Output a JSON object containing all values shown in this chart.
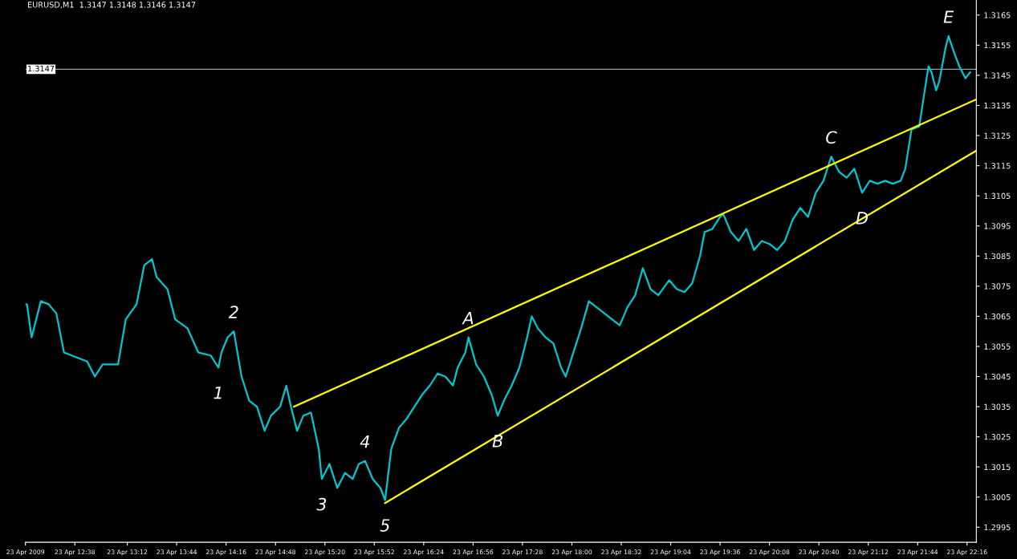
{
  "chart_data": {
    "type": "line",
    "title": "EURUSD,M1  1.3147 1.3148 1.3146 1.3147",
    "xlim": [
      "2009-04-23T12:06",
      "2009-04-23T22:22"
    ],
    "ylim": [
      1.299,
      1.317
    ],
    "xticks": [
      {
        "value": "2009-04-23T12:06",
        "label": "23 Apr 2009"
      },
      {
        "value": "2009-04-23T12:38",
        "label": "23 Apr 12:38"
      },
      {
        "value": "2009-04-23T13:12",
        "label": "23 Apr 13:12"
      },
      {
        "value": "2009-04-23T13:44",
        "label": "23 Apr 13:44"
      },
      {
        "value": "2009-04-23T14:16",
        "label": "23 Apr 14:16"
      },
      {
        "value": "2009-04-23T14:48",
        "label": "23 Apr 14:48"
      },
      {
        "value": "2009-04-23T15:20",
        "label": "23 Apr 15:20"
      },
      {
        "value": "2009-04-23T15:52",
        "label": "23 Apr 15:52"
      },
      {
        "value": "2009-04-23T16:24",
        "label": "23 Apr 16:24"
      },
      {
        "value": "2009-04-23T16:56",
        "label": "23 Apr 16:56"
      },
      {
        "value": "2009-04-23T17:28",
        "label": "23 Apr 17:28"
      },
      {
        "value": "2009-04-23T18:00",
        "label": "23 Apr 18:00"
      },
      {
        "value": "2009-04-23T18:32",
        "label": "23 Apr 18:32"
      },
      {
        "value": "2009-04-23T19:04",
        "label": "23 Apr 19:04"
      },
      {
        "value": "2009-04-23T19:36",
        "label": "23 Apr 19:36"
      },
      {
        "value": "2009-04-23T20:08",
        "label": "23 Apr 20:08"
      },
      {
        "value": "2009-04-23T20:40",
        "label": "23 Apr 20:40"
      },
      {
        "value": "2009-04-23T21:12",
        "label": "23 Apr 21:12"
      },
      {
        "value": "2009-04-23T21:44",
        "label": "23 Apr 21:44"
      },
      {
        "value": "2009-04-23T22:16",
        "label": "23 Apr 22:16"
      }
    ],
    "yticks": [
      1.2995,
      1.3005,
      1.3015,
      1.3025,
      1.3035,
      1.3045,
      1.3055,
      1.3065,
      1.3075,
      1.3085,
      1.3095,
      1.3105,
      1.3115,
      1.3125,
      1.3135,
      1.3145,
      1.3155,
      1.3165
    ],
    "grid": false,
    "marker": "none",
    "line_style": "solid",
    "series": [
      {
        "color": "#00c8d2",
        "x": [
          "2009-04-23T12:06",
          "2009-04-23T12:07",
          "2009-04-23T12:10",
          "2009-04-23T12:16",
          "2009-04-23T12:21",
          "2009-04-23T12:26",
          "2009-04-23T12:31",
          "2009-04-23T12:36",
          "2009-04-23T12:46",
          "2009-04-23T12:51",
          "2009-04-23T12:56",
          "2009-04-23T13:06",
          "2009-04-23T13:11",
          "2009-04-23T13:18",
          "2009-04-23T13:23",
          "2009-04-23T13:28",
          "2009-04-23T13:31",
          "2009-04-23T13:38",
          "2009-04-23T13:43",
          "2009-04-23T13:51",
          "2009-04-23T13:58",
          "2009-04-23T14:06",
          "2009-04-23T14:11",
          "2009-04-23T14:13",
          "2009-04-23T14:17",
          "2009-04-23T14:21",
          "2009-04-23T14:26",
          "2009-04-23T14:31",
          "2009-04-23T14:36",
          "2009-04-23T14:41",
          "2009-04-23T14:45",
          "2009-04-23T14:51",
          "2009-04-23T14:55",
          "2009-04-23T14:58",
          "2009-04-23T15:02",
          "2009-04-23T15:06",
          "2009-04-23T15:11",
          "2009-04-23T15:16",
          "2009-04-23T15:18",
          "2009-04-23T15:23",
          "2009-04-23T15:28",
          "2009-04-23T15:33",
          "2009-04-23T15:38",
          "2009-04-23T15:42",
          "2009-04-23T15:46",
          "2009-04-23T15:51",
          "2009-04-23T15:56",
          "2009-04-23T15:59",
          "2009-04-23T16:03",
          "2009-04-23T16:08",
          "2009-04-23T16:13",
          "2009-04-23T16:18",
          "2009-04-23T16:23",
          "2009-04-23T16:28",
          "2009-04-23T16:33",
          "2009-04-23T16:38",
          "2009-04-23T16:43",
          "2009-04-23T16:46",
          "2009-04-23T16:51",
          "2009-04-23T16:53",
          "2009-04-23T16:58",
          "2009-04-23T17:03",
          "2009-04-23T17:08",
          "2009-04-23T17:12",
          "2009-04-23T17:16",
          "2009-04-23T17:21",
          "2009-04-23T17:26",
          "2009-04-23T17:31",
          "2009-04-23T17:34",
          "2009-04-23T17:38",
          "2009-04-23T17:43",
          "2009-04-23T17:48",
          "2009-04-23T17:53",
          "2009-04-23T17:56",
          "2009-04-23T18:01",
          "2009-04-23T18:06",
          "2009-04-23T18:11",
          "2009-04-23T18:16",
          "2009-04-23T18:21",
          "2009-04-23T18:26",
          "2009-04-23T18:31",
          "2009-04-23T18:36",
          "2009-04-23T18:41",
          "2009-04-23T18:46",
          "2009-04-23T18:51",
          "2009-04-23T18:56",
          "2009-04-23T19:03",
          "2009-04-23T19:08",
          "2009-04-23T19:13",
          "2009-04-23T19:18",
          "2009-04-23T19:23",
          "2009-04-23T19:26",
          "2009-04-23T19:31",
          "2009-04-23T19:36",
          "2009-04-23T19:38",
          "2009-04-23T19:43",
          "2009-04-23T19:48",
          "2009-04-23T19:53",
          "2009-04-23T19:58",
          "2009-04-23T20:03",
          "2009-04-23T20:08",
          "2009-04-23T20:13",
          "2009-04-23T20:18",
          "2009-04-23T20:23",
          "2009-04-23T20:28",
          "2009-04-23T20:33",
          "2009-04-23T20:38",
          "2009-04-23T20:43",
          "2009-04-23T20:48",
          "2009-04-23T20:53",
          "2009-04-23T20:58",
          "2009-04-23T21:03",
          "2009-04-23T21:08",
          "2009-04-23T21:13",
          "2009-04-23T21:18",
          "2009-04-23T21:23",
          "2009-04-23T21:28",
          "2009-04-23T21:33",
          "2009-04-23T21:36",
          "2009-04-23T21:40",
          "2009-04-23T21:45",
          "2009-04-23T21:48",
          "2009-04-23T21:51",
          "2009-04-23T21:53",
          "2009-04-23T21:56",
          "2009-04-23T21:58",
          "2009-04-23T22:02",
          "2009-04-23T22:04",
          "2009-04-23T22:08",
          "2009-04-23T22:11",
          "2009-04-23T22:15",
          "2009-04-23T22:18"
        ],
        "values": [
          1.3069,
          1.3069,
          1.3058,
          1.307,
          1.3069,
          1.3066,
          1.3053,
          1.3052,
          1.305,
          1.3045,
          1.3049,
          1.3049,
          1.3064,
          1.3069,
          1.3082,
          1.3084,
          1.3078,
          1.3074,
          1.3064,
          1.3061,
          1.3053,
          1.3052,
          1.3048,
          1.3053,
          1.3058,
          1.306,
          1.3045,
          1.3037,
          1.3035,
          1.3027,
          1.3032,
          1.3035,
          1.3042,
          1.3035,
          1.3027,
          1.3032,
          1.3033,
          1.3021,
          1.3011,
          1.3016,
          1.3008,
          1.3013,
          1.3011,
          1.3016,
          1.3017,
          1.3011,
          1.3008,
          1.3004,
          1.3021,
          1.3028,
          1.3031,
          1.3035,
          1.3039,
          1.3042,
          1.3046,
          1.3045,
          1.3042,
          1.3048,
          1.3053,
          1.3058,
          1.3049,
          1.3045,
          1.3039,
          1.3032,
          1.3037,
          1.3042,
          1.3048,
          1.3058,
          1.3065,
          1.3061,
          1.3058,
          1.3056,
          1.3048,
          1.3045,
          1.3053,
          1.3061,
          1.307,
          1.3068,
          1.3066,
          1.3064,
          1.3062,
          1.3068,
          1.3072,
          1.3081,
          1.3074,
          1.3072,
          1.3077,
          1.3074,
          1.3073,
          1.3076,
          1.3085,
          1.3093,
          1.3094,
          1.3098,
          1.3099,
          1.3093,
          1.309,
          1.3094,
          1.3087,
          1.309,
          1.3089,
          1.3087,
          1.309,
          1.3097,
          1.3101,
          1.3098,
          1.3106,
          1.311,
          1.3118,
          1.3113,
          1.3111,
          1.3114,
          1.3106,
          1.311,
          1.3109,
          1.311,
          1.3109,
          1.311,
          1.3114,
          1.3127,
          1.3128,
          1.3138,
          1.3148,
          1.3146,
          1.314,
          1.3143,
          1.3154,
          1.3158,
          1.3152,
          1.3148,
          1.3144,
          1.3146
        ]
      },
      {
        "type": "line",
        "color": "#ffff00",
        "x": [
          "2009-04-23T15:00",
          "2009-04-23T22:22"
        ],
        "values": [
          1.3035,
          1.3137
        ]
      },
      {
        "type": "line",
        "color": "#ffff00",
        "x": [
          "2009-04-23T15:59",
          "2009-04-23T22:22"
        ],
        "values": [
          1.3003,
          1.312
        ]
      }
    ],
    "ref_lines": [
      {
        "axis": "y",
        "value": 1.3147,
        "label": "1.3147",
        "color": "#8fa0b0"
      }
    ],
    "annotations": [
      {
        "text": "1",
        "x": "2009-04-23T14:11",
        "y": 1.3048
      },
      {
        "text": "2",
        "x": "2009-04-23T14:21",
        "y": 1.306
      },
      {
        "text": "3",
        "x": "2009-04-23T15:18",
        "y": 1.3011
      },
      {
        "text": "4",
        "x": "2009-04-23T15:46",
        "y": 1.3017
      },
      {
        "text": "5",
        "x": "2009-04-23T15:59",
        "y": 1.3004
      },
      {
        "text": "A",
        "x": "2009-04-23T16:53",
        "y": 1.3058
      },
      {
        "text": "B",
        "x": "2009-04-23T17:12",
        "y": 1.3032
      },
      {
        "text": "C",
        "x": "2009-04-23T20:48",
        "y": 1.3118
      },
      {
        "text": "D",
        "x": "2009-04-23T21:08",
        "y": 1.3106
      },
      {
        "text": "E",
        "x": "2009-04-23T22:04",
        "y": 1.3158
      }
    ]
  }
}
